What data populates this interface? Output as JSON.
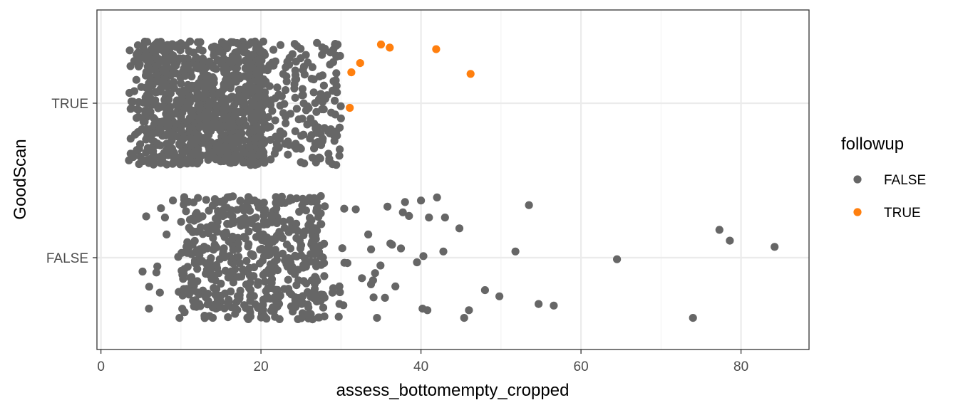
{
  "chart_data": {
    "type": "scatter",
    "title": "",
    "xlabel": "assess_bottomempty_cropped",
    "ylabel": "GoodScan",
    "xlim": [
      -0.5,
      88.5
    ],
    "x_ticks": [
      0,
      20,
      40,
      60,
      80
    ],
    "x_tick_labels": [
      "0",
      "20",
      "40",
      "60",
      "80"
    ],
    "y_categories": [
      "FALSE",
      "TRUE"
    ],
    "grid": true,
    "jitter": true,
    "legend": {
      "title": "followup",
      "position": "right",
      "entries": [
        {
          "label": "FALSE",
          "color": "#666666"
        },
        {
          "label": "TRUE",
          "color": "#ff7f0e"
        }
      ]
    },
    "series": [
      {
        "name": "FALSE",
        "color": "#666666",
        "group": "FALSE",
        "dense_cluster": {
          "x_min": 5.5,
          "x_max": 38,
          "x_center": 20,
          "count": 560
        },
        "points": [
          {
            "x": 53.5,
            "y": 0.34
          },
          {
            "x": 51.8,
            "y": 0.04
          },
          {
            "x": 64.5,
            "y": -0.01
          },
          {
            "x": 77.3,
            "y": 0.18
          },
          {
            "x": 78.6,
            "y": 0.11
          },
          {
            "x": 84.2,
            "y": 0.07
          },
          {
            "x": 74.0,
            "y": -0.39
          },
          {
            "x": 48.0,
            "y": -0.21
          },
          {
            "x": 49.8,
            "y": -0.25
          },
          {
            "x": 54.7,
            "y": -0.3
          },
          {
            "x": 56.6,
            "y": -0.31
          },
          {
            "x": 46.0,
            "y": -0.34
          },
          {
            "x": 45.4,
            "y": -0.39
          },
          {
            "x": 42.0,
            "y": 0.39
          },
          {
            "x": 43.0,
            "y": 0.26
          },
          {
            "x": 44.8,
            "y": 0.19
          },
          {
            "x": 42.8,
            "y": 0.04
          },
          {
            "x": 40.3,
            "y": 0.01
          },
          {
            "x": 40.8,
            "y": -0.34
          },
          {
            "x": 40.2,
            "y": -0.33
          },
          {
            "x": 38.0,
            "y": 0.36
          },
          {
            "x": 40.0,
            "y": 0.37
          },
          {
            "x": 39.5,
            "y": -0.03
          },
          {
            "x": 34.5,
            "y": -0.39
          },
          {
            "x": 35.5,
            "y": -0.26
          },
          {
            "x": 37.5,
            "y": 0.06
          },
          {
            "x": 38.5,
            "y": 0.27
          },
          {
            "x": 41.0,
            "y": 0.26
          },
          {
            "x": 5.2,
            "y": -0.09
          },
          {
            "x": 6.0,
            "y": -0.33
          },
          {
            "x": 7.5,
            "y": 0.32
          },
          {
            "x": 8.0,
            "y": 0.26
          },
          {
            "x": 8.2,
            "y": 0.15
          },
          {
            "x": 9.0,
            "y": 0.37
          }
        ]
      },
      {
        "name": "FALSE",
        "color": "#666666",
        "group": "TRUE",
        "dense_cluster": {
          "x_min": 3.5,
          "x_max": 30,
          "x_center": 12.5,
          "count": 1150
        },
        "points": [
          {
            "x": 29.5,
            "y": 0.07
          },
          {
            "x": 29.8,
            "y": -0.34
          },
          {
            "x": 29.5,
            "y": -0.21
          },
          {
            "x": 27.7,
            "y": 0.18
          },
          {
            "x": 26.6,
            "y": 0.07
          },
          {
            "x": 26.2,
            "y": -0.1
          },
          {
            "x": 25.4,
            "y": -0.39
          },
          {
            "x": 24.2,
            "y": -0.28
          },
          {
            "x": 3.5,
            "y": -0.37
          },
          {
            "x": 3.7,
            "y": 0.24
          },
          {
            "x": 24.5,
            "y": 0.37
          },
          {
            "x": 23.5,
            "y": -0.27
          },
          {
            "x": 26.8,
            "y": -0.26
          }
        ]
      },
      {
        "name": "TRUE",
        "color": "#ff7f0e",
        "group": "TRUE",
        "points": [
          {
            "x": 35.0,
            "y": 0.38
          },
          {
            "x": 36.1,
            "y": 0.36
          },
          {
            "x": 41.9,
            "y": 0.35
          },
          {
            "x": 32.4,
            "y": 0.26
          },
          {
            "x": 31.3,
            "y": 0.2
          },
          {
            "x": 46.2,
            "y": 0.19
          },
          {
            "x": 31.1,
            "y": -0.03
          }
        ]
      }
    ]
  }
}
